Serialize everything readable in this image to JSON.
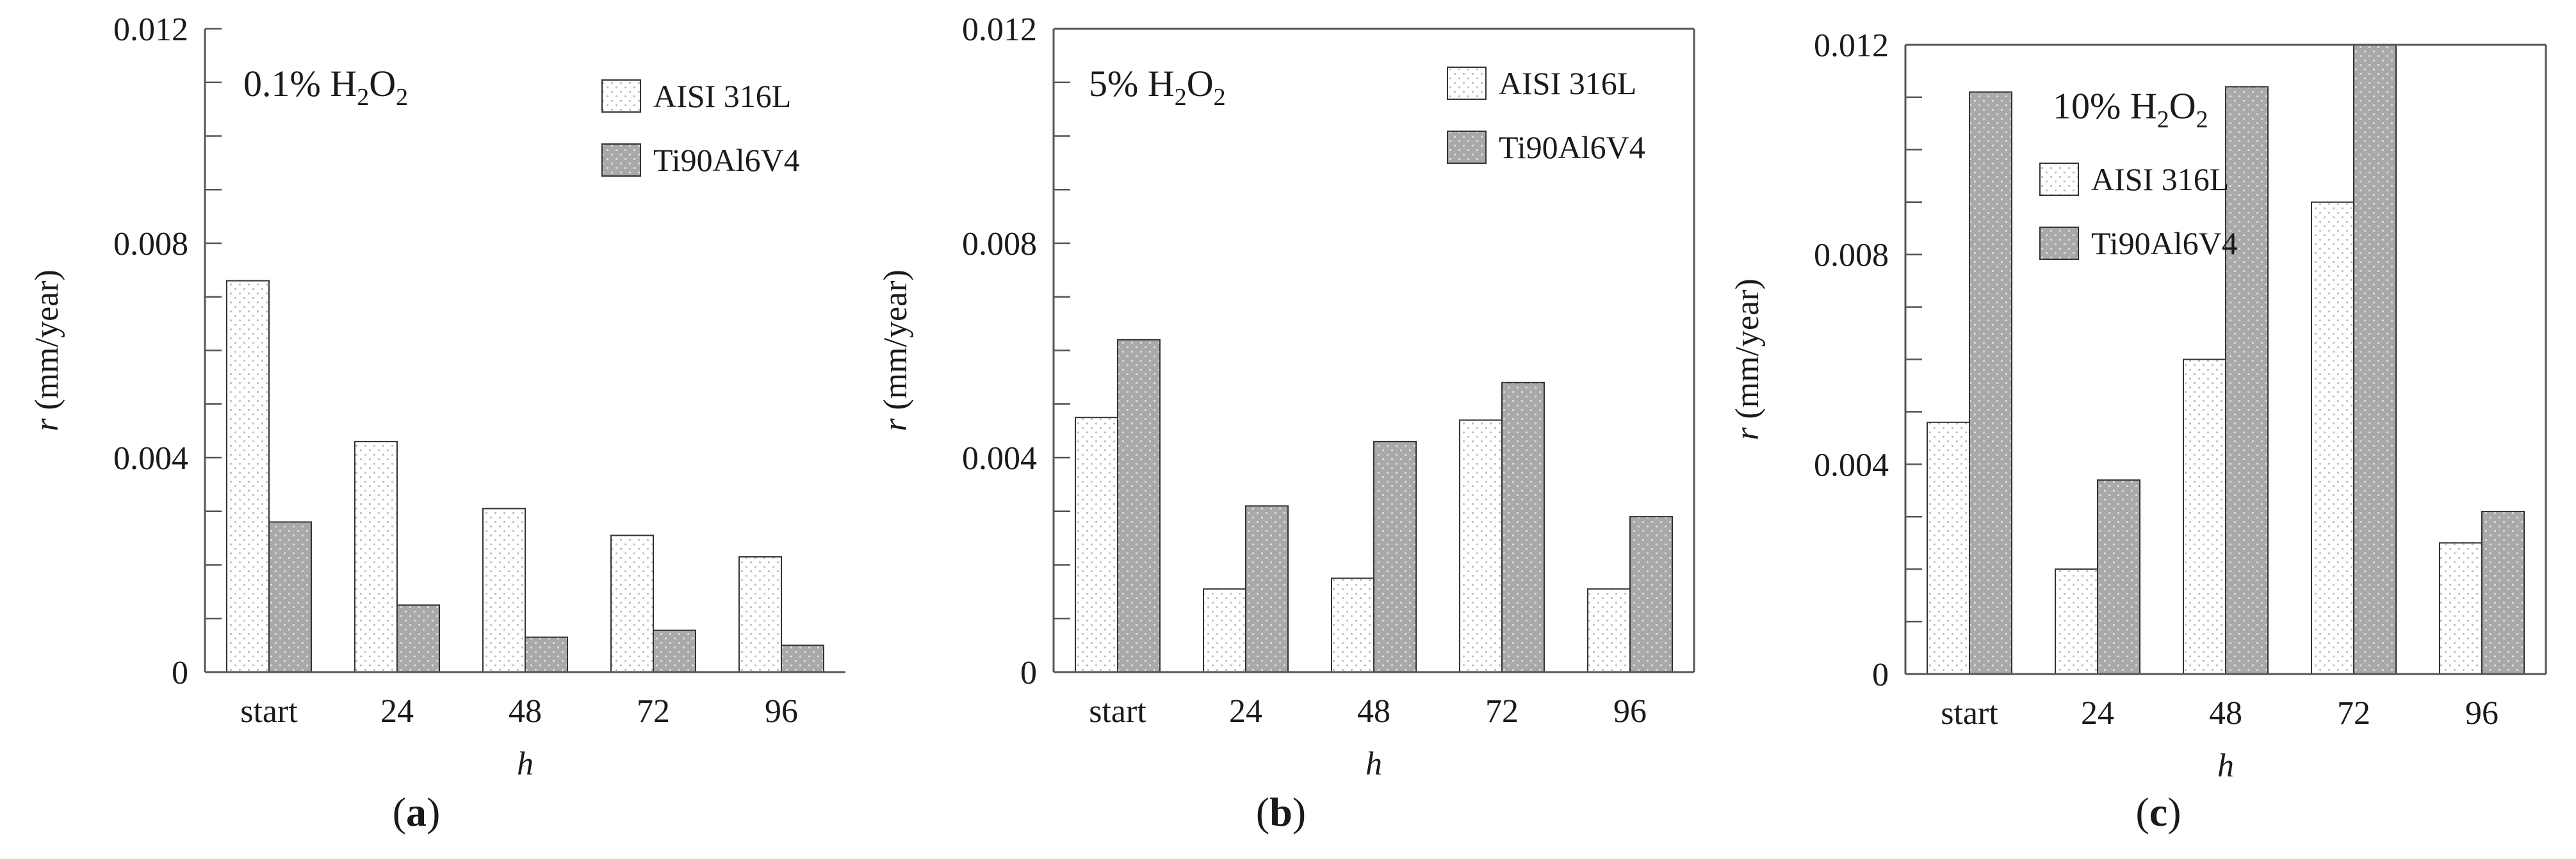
{
  "chart_data": [
    {
      "type": "bar",
      "panel_label": "a",
      "annotation": {
        "prefix": "0.1% H",
        "sub1": "2",
        "mid": "O",
        "sub2": "2"
      },
      "categories": [
        "start",
        "24",
        "48",
        "72",
        "96"
      ],
      "series": [
        {
          "name": "AISI 316L",
          "values": [
            0.0073,
            0.0043,
            0.00305,
            0.00255,
            0.00215
          ]
        },
        {
          "name": "Ti90Al6V4",
          "values": [
            0.0028,
            0.00125,
            0.00065,
            0.00078,
            0.0005
          ]
        }
      ],
      "xlabel": "h",
      "ylabel": {
        "var": "r",
        "unit": " (mm/year)"
      },
      "ylim": [
        0,
        0.012
      ],
      "yticks": [
        "0",
        "0.004",
        "0.008",
        "0.012"
      ],
      "legend_position": "top-right"
    },
    {
      "type": "bar",
      "panel_label": "b",
      "annotation": {
        "prefix": "5% H",
        "sub1": "2",
        "mid": "O",
        "sub2": "2"
      },
      "categories": [
        "start",
        "24",
        "48",
        "72",
        "96"
      ],
      "series": [
        {
          "name": "AISI 316L",
          "values": [
            0.00475,
            0.00155,
            0.00175,
            0.0047,
            0.00155
          ]
        },
        {
          "name": "Ti90Al6V4",
          "values": [
            0.0062,
            0.0031,
            0.0043,
            0.0054,
            0.0029
          ]
        }
      ],
      "xlabel": "h",
      "ylabel": {
        "var": "r",
        "unit": " (mm/year)"
      },
      "ylim": [
        0,
        0.012
      ],
      "yticks": [
        "0",
        "0.004",
        "0.008",
        "0.012"
      ],
      "legend_position": "top-right"
    },
    {
      "type": "bar",
      "panel_label": "c",
      "annotation": {
        "prefix": "10% H",
        "sub1": "2",
        "mid": "O",
        "sub2": "2"
      },
      "categories": [
        "start",
        "24",
        "48",
        "72",
        "96"
      ],
      "series": [
        {
          "name": "AISI 316L",
          "values": [
            0.0048,
            0.002,
            0.006,
            0.009,
            0.0025
          ]
        },
        {
          "name": "Ti90Al6V4",
          "values": [
            0.0111,
            0.0037,
            0.0112,
            0.012,
            0.0031
          ]
        }
      ],
      "xlabel": "h",
      "ylabel": {
        "var": "r",
        "unit": " (mm/year)"
      },
      "ylim": [
        0,
        0.012
      ],
      "yticks": [
        "0",
        "0.004",
        "0.008",
        "0.012"
      ],
      "legend_position": "top-left"
    }
  ],
  "colors": {
    "series_fill": [
      "#ffffff",
      "#a9a9a9"
    ],
    "pattern_dots": [
      "#b8b8b8",
      "#e4e4e4"
    ],
    "axis": "#555555"
  }
}
